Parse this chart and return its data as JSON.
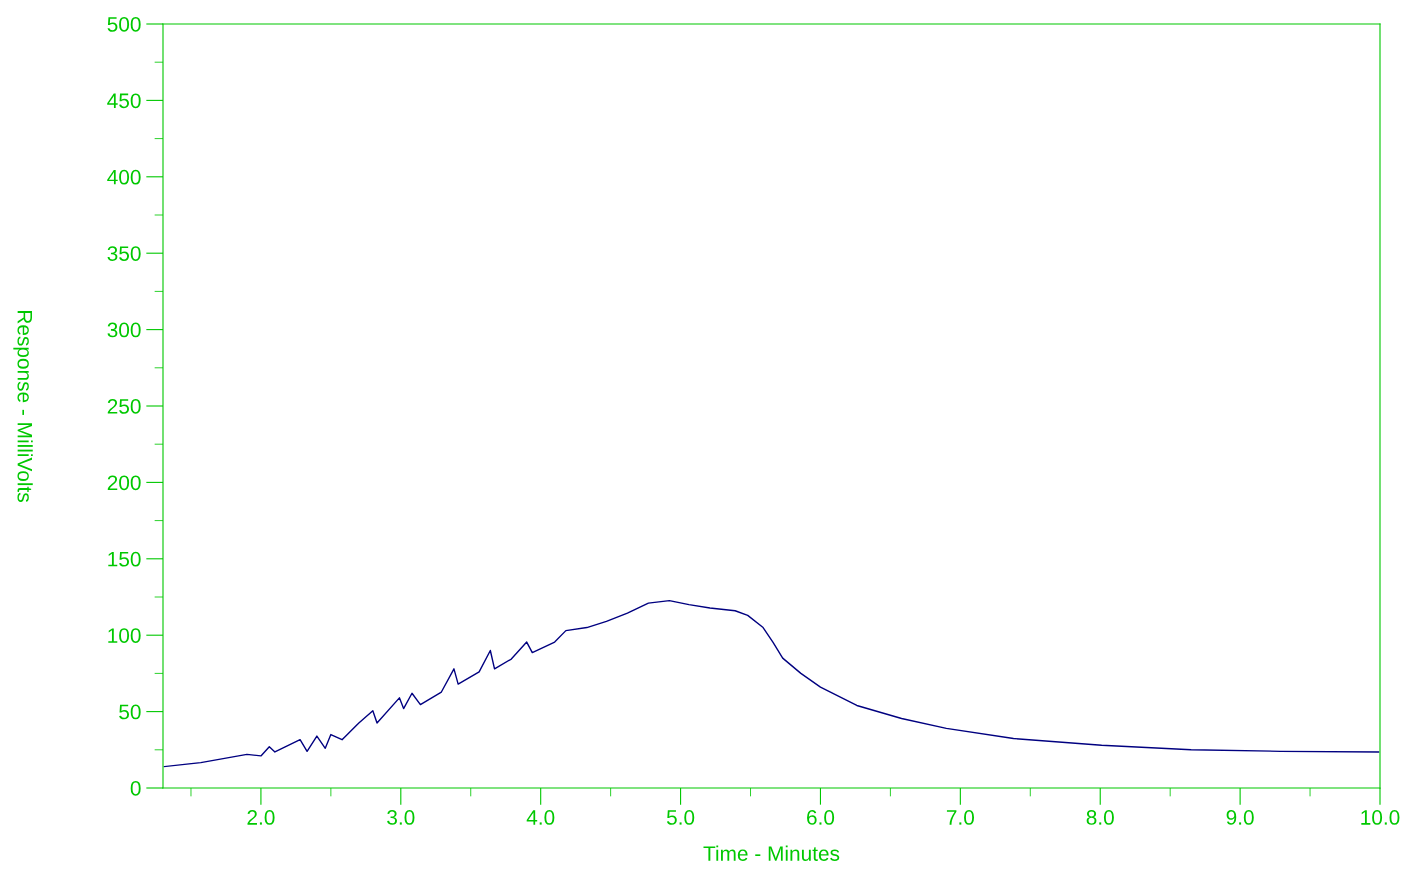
{
  "chart_data": {
    "type": "line",
    "xlabel": "Time - Minutes",
    "ylabel": "Response - MilliVolts",
    "xlim": [
      1.3,
      10.0
    ],
    "ylim": [
      0,
      500
    ],
    "xticks": [
      {
        "value": 2,
        "label": "2.0"
      },
      {
        "value": 3,
        "label": "3.0"
      },
      {
        "value": 4,
        "label": "4.0"
      },
      {
        "value": 5,
        "label": "5.0"
      },
      {
        "value": 6,
        "label": "6.0"
      },
      {
        "value": 7,
        "label": "7.0"
      },
      {
        "value": 8,
        "label": "8.0"
      },
      {
        "value": 9,
        "label": "9.0"
      },
      {
        "value": 10,
        "label": "10.0"
      }
    ],
    "yticks": [
      0,
      50,
      100,
      150,
      200,
      250,
      300,
      350,
      400,
      450,
      500
    ],
    "grid": false,
    "legend": false,
    "marker": "none",
    "line_style": "solid",
    "series": [
      {
        "color": "#000080",
        "x": [
          1.31,
          1.57,
          1.9,
          2.0,
          2.06,
          2.1,
          2.28,
          2.33,
          2.4,
          2.46,
          2.5,
          2.58,
          2.7,
          2.8,
          2.83,
          2.99,
          3.02,
          3.08,
          3.14,
          3.29,
          3.38,
          3.41,
          3.56,
          3.64,
          3.67,
          3.79,
          3.9,
          3.94,
          4.1,
          4.18,
          4.33,
          4.47,
          4.62,
          4.77,
          4.92,
          5.06,
          5.21,
          5.39,
          5.48,
          5.59,
          5.66,
          5.73,
          5.86,
          6.0,
          6.26,
          6.58,
          6.9,
          7.38,
          8.01,
          8.65,
          9.29,
          9.99
        ],
        "values": [
          14,
          16.6,
          22,
          21,
          27,
          23.6,
          31.6,
          24,
          34,
          26,
          35,
          31.6,
          42.5,
          50.6,
          42.5,
          59,
          52,
          62,
          54.6,
          62.8,
          78,
          68,
          76,
          90,
          78,
          84.4,
          95.5,
          88.6,
          95.5,
          103,
          105,
          109,
          114.5,
          121,
          122.6,
          120,
          117.8,
          116,
          113,
          105,
          95.5,
          85,
          75,
          66,
          54,
          45.5,
          39,
          32.4,
          28,
          25,
          24,
          23.6
        ]
      }
    ]
  }
}
